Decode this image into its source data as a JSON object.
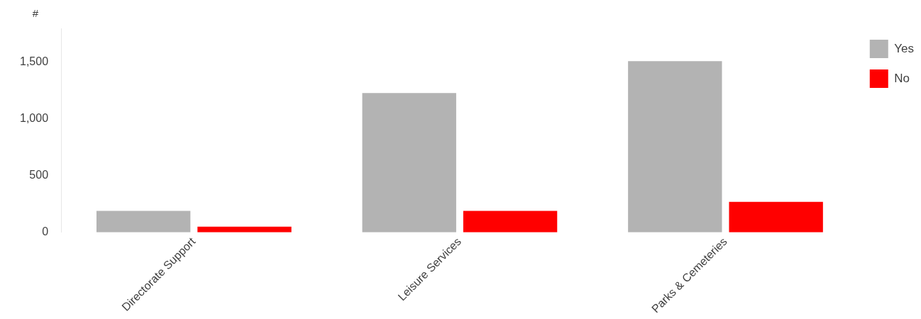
{
  "chart_data": {
    "type": "bar",
    "ylabel": "#",
    "categories": [
      "Directorate Support",
      "Leisure Services",
      "Parks & Cemeteries"
    ],
    "series": [
      {
        "name": "Yes",
        "color": "#b3b3b3",
        "values": [
          190,
          1230,
          1510
        ]
      },
      {
        "name": "No",
        "color": "#ff0000",
        "values": [
          50,
          190,
          270
        ]
      }
    ],
    "ylim": [
      0,
      1800
    ],
    "yticks": [
      {
        "value": 0,
        "label": "0"
      },
      {
        "value": 500,
        "label": "500"
      },
      {
        "value": 1000,
        "label": "1,000"
      },
      {
        "value": 1500,
        "label": "1,500"
      }
    ],
    "grid": false,
    "legend": "top right"
  }
}
